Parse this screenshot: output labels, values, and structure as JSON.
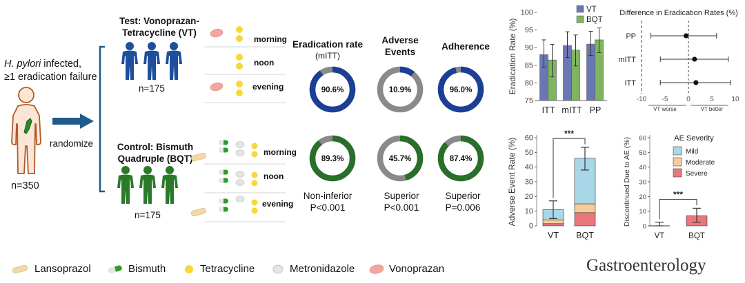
{
  "population": {
    "condition_italic": "H. pylori",
    "condition_rest": " infected,",
    "failure_line": "≥1 eradication failure",
    "total": "n=350",
    "randomize": "randomize"
  },
  "test_arm": {
    "title_line1": "Test: Vonoprazan-",
    "title_line2": "Tetracycline (VT)",
    "n": "n=175",
    "times": [
      "morning",
      "noon",
      "evening"
    ]
  },
  "control_arm": {
    "title_line1": "Control: Bismuth",
    "title_line2": "Quadruple (BQT)",
    "n": "n=175",
    "times": [
      "morning",
      "noon",
      "evening"
    ]
  },
  "outcomes": {
    "headers": [
      {
        "line1": "Eradication rate",
        "line2": "(mITT)"
      },
      {
        "line1": "Adverse",
        "line2": "Events"
      },
      {
        "line1": "Adherence",
        "line2": ""
      }
    ],
    "vt": [
      {
        "value": 90.6,
        "label": "90.6%",
        "color": "#1b3f94"
      },
      {
        "value": 10.9,
        "label": "10.9%",
        "color": "#1b3f94"
      },
      {
        "value": 96.0,
        "label": "96.0%",
        "color": "#1b3f94"
      }
    ],
    "bqt": [
      {
        "value": 89.3,
        "label": "89.3%",
        "color": "#2a6e2a"
      },
      {
        "value": 45.7,
        "label": "45.7%",
        "color": "#2a6e2a"
      },
      {
        "value": 87.4,
        "label": "87.4%",
        "color": "#2a6e2a"
      }
    ],
    "remainder_color": "#8a8a8a",
    "verdicts": [
      {
        "line1": "Non-inferior",
        "line2": "P<0.001"
      },
      {
        "line1": "Superior",
        "line2": "P<0.001"
      },
      {
        "line1": "Superior",
        "line2": "P=0.006"
      }
    ]
  },
  "legend": {
    "items": [
      {
        "name": "lansoprazol",
        "label": "Lansoprazol"
      },
      {
        "name": "bismuth",
        "label": "Bismuth"
      },
      {
        "name": "tetracycline",
        "label": "Tetracycline"
      },
      {
        "name": "metronidazole",
        "label": "Metronidazole"
      },
      {
        "name": "vonoprazan",
        "label": "Vonoprazan"
      }
    ]
  },
  "journal": "Gastroenterology",
  "colors": {
    "blue_person": "#1f4f9c",
    "green_person": "#2a7a2a",
    "vt_bar": "#6b76b5",
    "bqt_bar": "#7fb55e",
    "mild": "#a8d8e8",
    "moderate": "#f5cc9a",
    "severe": "#e8787a",
    "arrow": "#1f5a8a"
  },
  "chart_data": [
    {
      "type": "bar",
      "name": "eradication-rate",
      "categories": [
        "ITT",
        "mITT",
        "PP"
      ],
      "series": [
        {
          "name": "VT",
          "values": [
            88.0,
            90.6,
            91.0
          ],
          "err_low": [
            84.5,
            87.2,
            87.8
          ],
          "err_high": [
            92.2,
            94.5,
            94.6
          ]
        },
        {
          "name": "BQT",
          "values": [
            86.5,
            89.3,
            92.2
          ],
          "err_low": [
            81.7,
            84.8,
            88.6
          ],
          "err_high": [
            90.9,
            93.6,
            95.6
          ]
        }
      ],
      "ylabel": "Eradication Rate (%)",
      "ylim": [
        75,
        100
      ],
      "yticks": [
        75,
        80,
        85,
        90,
        95,
        100
      ],
      "legend_placement": "top-right"
    },
    {
      "type": "scatter",
      "name": "difference-in-eradication-rates",
      "title": "Difference in Eradication Rates (%)",
      "categories": [
        "PP",
        "mITT",
        "ITT"
      ],
      "estimates": [
        -0.5,
        1.3,
        1.6
      ],
      "ci_low": [
        -8.0,
        -6.0,
        -6.0
      ],
      "ci_high": [
        6.0,
        8.5,
        9.0
      ],
      "xlim": [
        -10,
        10
      ],
      "xticks": [
        -10,
        -5,
        0,
        5,
        10
      ],
      "margin": -10,
      "left_note": "VT worse",
      "right_note": "VT better"
    },
    {
      "type": "bar",
      "name": "adverse-event-rate",
      "stacked": true,
      "categories": [
        "VT",
        "BQT"
      ],
      "series": [
        {
          "name": "Severe",
          "values": [
            1.5,
            9.0
          ]
        },
        {
          "name": "Moderate",
          "values": [
            2.5,
            6.0
          ]
        },
        {
          "name": "Mild",
          "values": [
            7.0,
            31.0
          ]
        }
      ],
      "totals": [
        10.9,
        45.7
      ],
      "err_low": [
        5.0,
        38.0
      ],
      "err_high": [
        17.0,
        53.5
      ],
      "ylabel": "Adverse Event Rate (%)",
      "ylim": [
        0,
        60
      ],
      "yticks": [
        0,
        10,
        20,
        30,
        40,
        50,
        60
      ],
      "significance": "***"
    },
    {
      "type": "bar",
      "name": "discontinued-due-to-ae",
      "stacked": true,
      "categories": [
        "VT",
        "BQT"
      ],
      "series": [
        {
          "name": "Severe",
          "values": [
            0.0,
            6.9
          ]
        },
        {
          "name": "Moderate",
          "values": [
            0.0,
            0.0
          ]
        },
        {
          "name": "Mild",
          "values": [
            0.0,
            0.0
          ]
        }
      ],
      "err_low": [
        0.0,
        2.5
      ],
      "err_high": [
        2.5,
        12.0
      ],
      "ylabel": "Discontinued Due to AE (%)",
      "ylim": [
        0,
        60
      ],
      "yticks": [
        0,
        10,
        20,
        30,
        40,
        50,
        60
      ],
      "legend_title": "AE Severity",
      "legend_items": [
        "Mild",
        "Moderate",
        "Severe"
      ],
      "significance": "***"
    }
  ]
}
